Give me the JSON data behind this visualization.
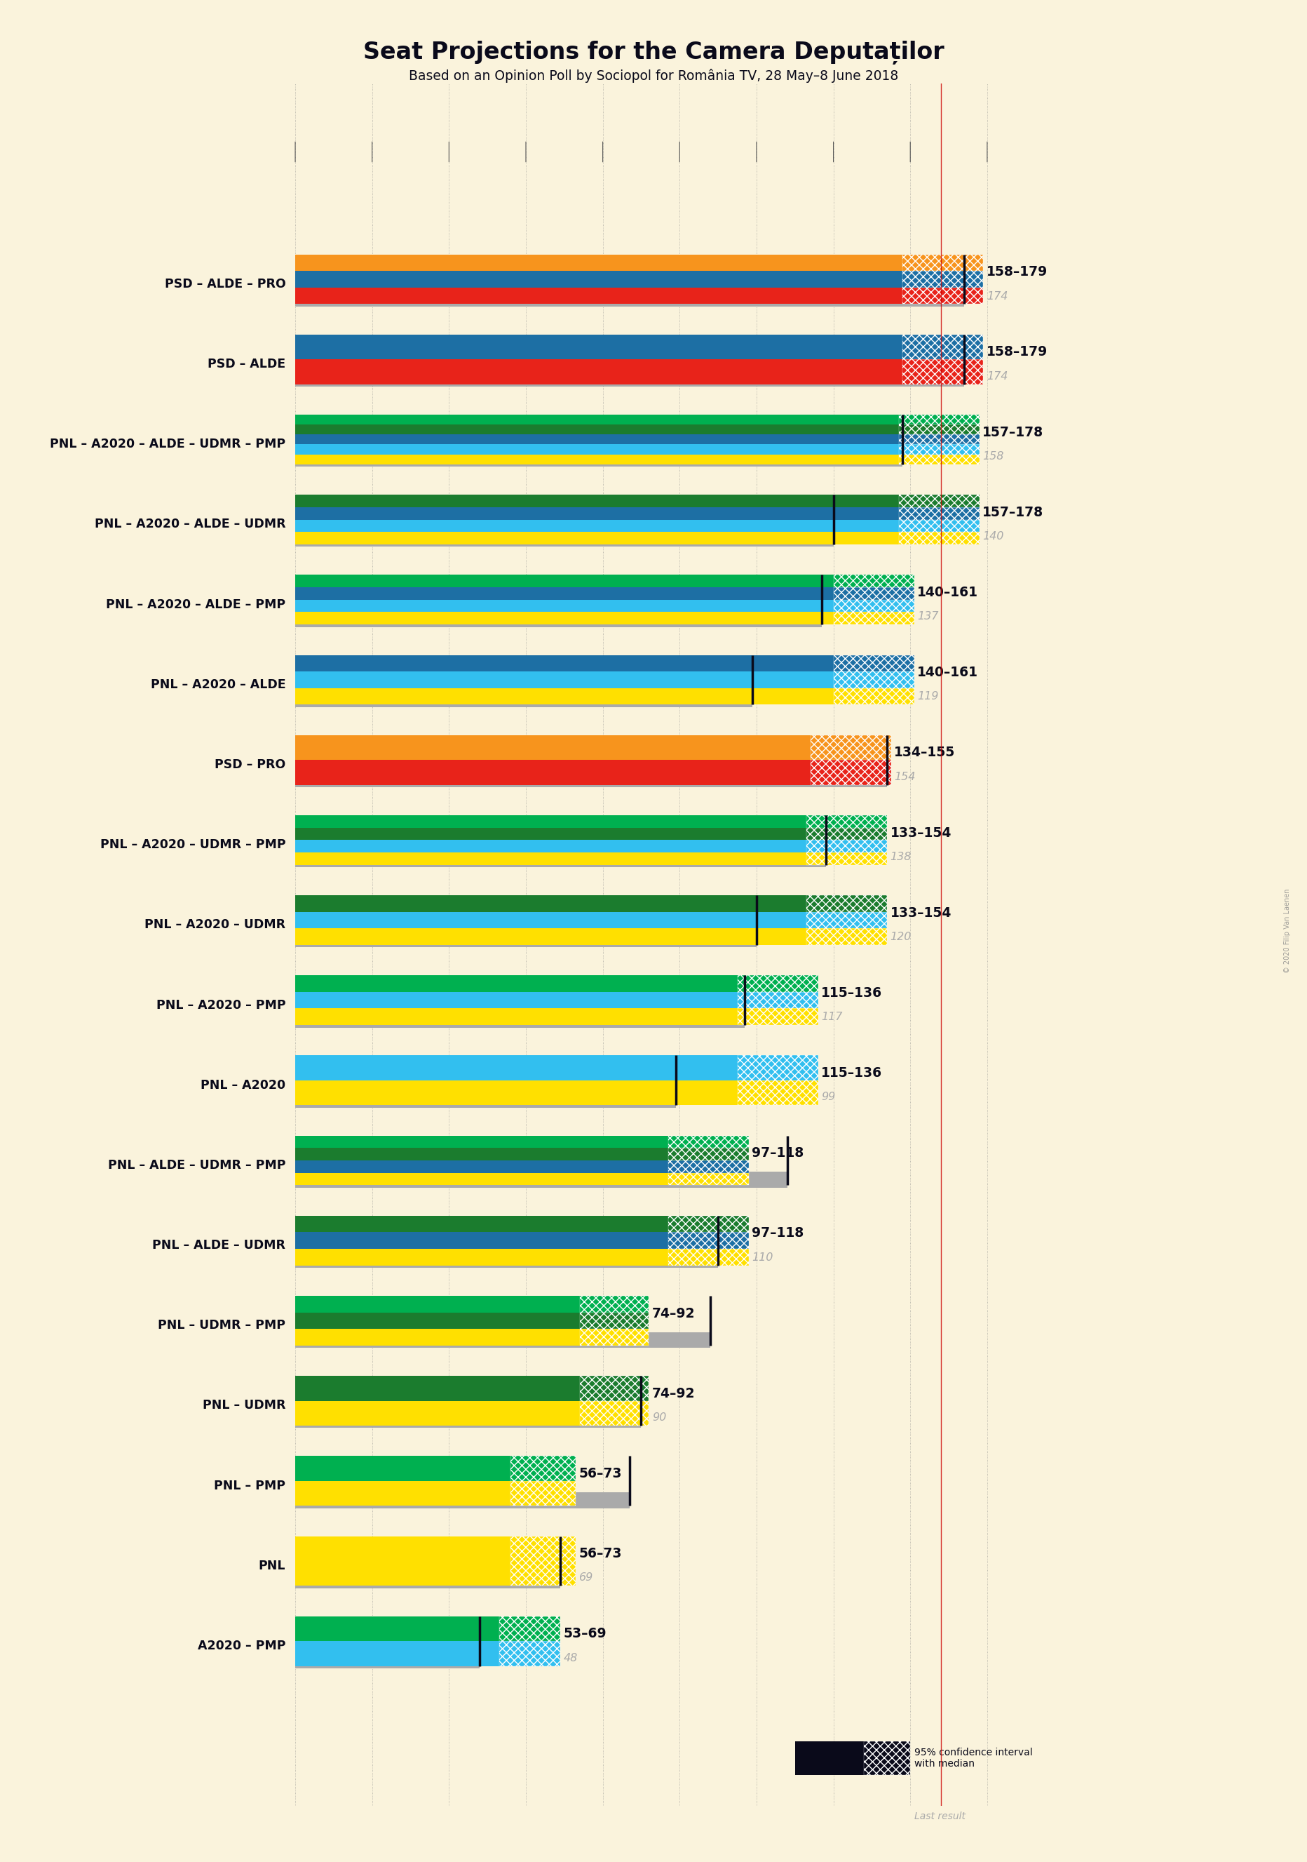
{
  "title": "Seat Projections for the Camera Deputaților",
  "subtitle": "Based on an Opinion Poll by Sociopol for România TV, 28 May–8 June 2018",
  "background_color": "#FAF3DC",
  "coalitions": [
    {
      "name": "PSD – ALDE – PRO",
      "underline": false,
      "range_low": 158,
      "range_high": 179,
      "median": 174,
      "last_result": 174,
      "parties": [
        {
          "name": "PSD",
          "color": "#E8231A"
        },
        {
          "name": "ALDE",
          "color": "#1D6FA4"
        },
        {
          "name": "PRO",
          "color": "#F7941D"
        }
      ]
    },
    {
      "name": "PSD – ALDE",
      "underline": false,
      "range_low": 158,
      "range_high": 179,
      "median": 174,
      "last_result": 174,
      "parties": [
        {
          "name": "PSD",
          "color": "#E8231A"
        },
        {
          "name": "ALDE",
          "color": "#1D6FA4"
        }
      ]
    },
    {
      "name": "PNL – A2020 – ALDE – UDMR – PMP",
      "underline": true,
      "range_low": 157,
      "range_high": 178,
      "median": 158,
      "last_result": 158,
      "parties": [
        {
          "name": "PNL",
          "color": "#FFE000"
        },
        {
          "name": "A2020",
          "color": "#32BFEF"
        },
        {
          "name": "ALDE",
          "color": "#1D6FA4"
        },
        {
          "name": "UDMR",
          "color": "#1B7C2E"
        },
        {
          "name": "PMP",
          "color": "#00B050"
        }
      ]
    },
    {
      "name": "PNL – A2020 – ALDE – UDMR",
      "underline": false,
      "range_low": 157,
      "range_high": 178,
      "median": 140,
      "last_result": 140,
      "parties": [
        {
          "name": "PNL",
          "color": "#FFE000"
        },
        {
          "name": "A2020",
          "color": "#32BFEF"
        },
        {
          "name": "ALDE",
          "color": "#1D6FA4"
        },
        {
          "name": "UDMR",
          "color": "#1B7C2E"
        }
      ]
    },
    {
      "name": "PNL – A2020 – ALDE – PMP",
      "underline": false,
      "range_low": 140,
      "range_high": 161,
      "median": 137,
      "last_result": 137,
      "parties": [
        {
          "name": "PNL",
          "color": "#FFE000"
        },
        {
          "name": "A2020",
          "color": "#32BFEF"
        },
        {
          "name": "ALDE",
          "color": "#1D6FA4"
        },
        {
          "name": "PMP",
          "color": "#00B050"
        }
      ]
    },
    {
      "name": "PNL – A2020 – ALDE",
      "underline": false,
      "range_low": 140,
      "range_high": 161,
      "median": 119,
      "last_result": 119,
      "parties": [
        {
          "name": "PNL",
          "color": "#FFE000"
        },
        {
          "name": "A2020",
          "color": "#32BFEF"
        },
        {
          "name": "ALDE",
          "color": "#1D6FA4"
        }
      ]
    },
    {
      "name": "PSD – PRO",
      "underline": false,
      "range_low": 134,
      "range_high": 155,
      "median": 154,
      "last_result": 154,
      "parties": [
        {
          "name": "PSD",
          "color": "#E8231A"
        },
        {
          "name": "PRO",
          "color": "#F7941D"
        }
      ]
    },
    {
      "name": "PNL – A2020 – UDMR – PMP",
      "underline": false,
      "range_low": 133,
      "range_high": 154,
      "median": 138,
      "last_result": 138,
      "parties": [
        {
          "name": "PNL",
          "color": "#FFE000"
        },
        {
          "name": "A2020",
          "color": "#32BFEF"
        },
        {
          "name": "UDMR",
          "color": "#1B7C2E"
        },
        {
          "name": "PMP",
          "color": "#00B050"
        }
      ]
    },
    {
      "name": "PNL – A2020 – UDMR",
      "underline": false,
      "range_low": 133,
      "range_high": 154,
      "median": 120,
      "last_result": 120,
      "parties": [
        {
          "name": "PNL",
          "color": "#FFE000"
        },
        {
          "name": "A2020",
          "color": "#32BFEF"
        },
        {
          "name": "UDMR",
          "color": "#1B7C2E"
        }
      ]
    },
    {
      "name": "PNL – A2020 – PMP",
      "underline": false,
      "range_low": 115,
      "range_high": 136,
      "median": 117,
      "last_result": 117,
      "parties": [
        {
          "name": "PNL",
          "color": "#FFE000"
        },
        {
          "name": "A2020",
          "color": "#32BFEF"
        },
        {
          "name": "PMP",
          "color": "#00B050"
        }
      ]
    },
    {
      "name": "PNL – A2020",
      "underline": false,
      "range_low": 115,
      "range_high": 136,
      "median": 99,
      "last_result": 99,
      "parties": [
        {
          "name": "PNL",
          "color": "#FFE000"
        },
        {
          "name": "A2020",
          "color": "#32BFEF"
        }
      ]
    },
    {
      "name": "PNL – ALDE – UDMR – PMP",
      "underline": false,
      "range_low": 97,
      "range_high": 118,
      "median": 128,
      "last_result": 128,
      "parties": [
        {
          "name": "PNL",
          "color": "#FFE000"
        },
        {
          "name": "ALDE",
          "color": "#1D6FA4"
        },
        {
          "name": "UDMR",
          "color": "#1B7C2E"
        },
        {
          "name": "PMP",
          "color": "#00B050"
        }
      ]
    },
    {
      "name": "PNL – ALDE – UDMR",
      "underline": false,
      "range_low": 97,
      "range_high": 118,
      "median": 110,
      "last_result": 110,
      "parties": [
        {
          "name": "PNL",
          "color": "#FFE000"
        },
        {
          "name": "ALDE",
          "color": "#1D6FA4"
        },
        {
          "name": "UDMR",
          "color": "#1B7C2E"
        }
      ]
    },
    {
      "name": "PNL – UDMR – PMP",
      "underline": false,
      "range_low": 74,
      "range_high": 92,
      "median": 108,
      "last_result": 108,
      "parties": [
        {
          "name": "PNL",
          "color": "#FFE000"
        },
        {
          "name": "UDMR",
          "color": "#1B7C2E"
        },
        {
          "name": "PMP",
          "color": "#00B050"
        }
      ]
    },
    {
      "name": "PNL – UDMR",
      "underline": false,
      "range_low": 74,
      "range_high": 92,
      "median": 90,
      "last_result": 90,
      "parties": [
        {
          "name": "PNL",
          "color": "#FFE000"
        },
        {
          "name": "UDMR",
          "color": "#1B7C2E"
        }
      ]
    },
    {
      "name": "PNL – PMP",
      "underline": false,
      "range_low": 56,
      "range_high": 73,
      "median": 87,
      "last_result": 87,
      "parties": [
        {
          "name": "PNL",
          "color": "#FFE000"
        },
        {
          "name": "PMP",
          "color": "#00B050"
        }
      ]
    },
    {
      "name": "PNL",
      "underline": true,
      "range_low": 56,
      "range_high": 73,
      "median": 69,
      "last_result": 69,
      "parties": [
        {
          "name": "PNL",
          "color": "#FFE000"
        }
      ]
    },
    {
      "name": "A2020 – PMP",
      "underline": false,
      "range_low": 53,
      "range_high": 69,
      "median": 48,
      "last_result": 48,
      "parties": [
        {
          "name": "A2020",
          "color": "#32BFEF"
        },
        {
          "name": "PMP",
          "color": "#00B050"
        }
      ]
    }
  ],
  "xmin": 0,
  "xmax": 180,
  "majority_line": 168,
  "bar_height": 0.62,
  "last_result_color": "#AAAAAA",
  "median_line_color": "#CC0000",
  "x_tick_interval": 20,
  "hatch_density": "////"
}
